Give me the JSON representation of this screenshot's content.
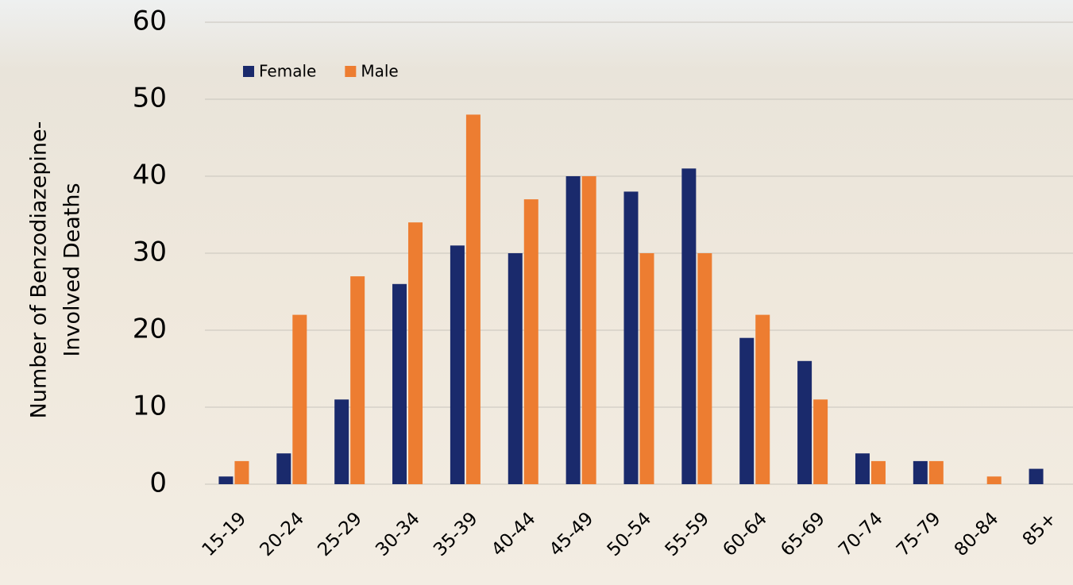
{
  "chart_data": {
    "type": "bar",
    "ylabel": [
      "Number of Benzodiazepine-",
      "Involved Deaths"
    ],
    "categories": [
      "15-19",
      "20-24",
      "25-29",
      "30-34",
      "35-39",
      "40-44",
      "45-49",
      "50-54",
      "55-59",
      "60-64",
      "65-69",
      "70-74",
      "75-79",
      "80-84",
      "85+"
    ],
    "series": [
      {
        "name": "Female",
        "color": "#1a2a6c",
        "values": [
          1,
          4,
          11,
          26,
          31,
          30,
          40,
          38,
          41,
          19,
          16,
          4,
          3,
          0,
          2
        ]
      },
      {
        "name": "Male",
        "color": "#ed7d31",
        "values": [
          3,
          22,
          27,
          34,
          48,
          37,
          40,
          30,
          30,
          22,
          11,
          3,
          3,
          1,
          0
        ]
      }
    ],
    "ylim": [
      0,
      60
    ],
    "yticks": [
      0,
      10,
      20,
      30,
      40,
      50,
      60
    ],
    "grid": true,
    "legend": "top-left"
  }
}
